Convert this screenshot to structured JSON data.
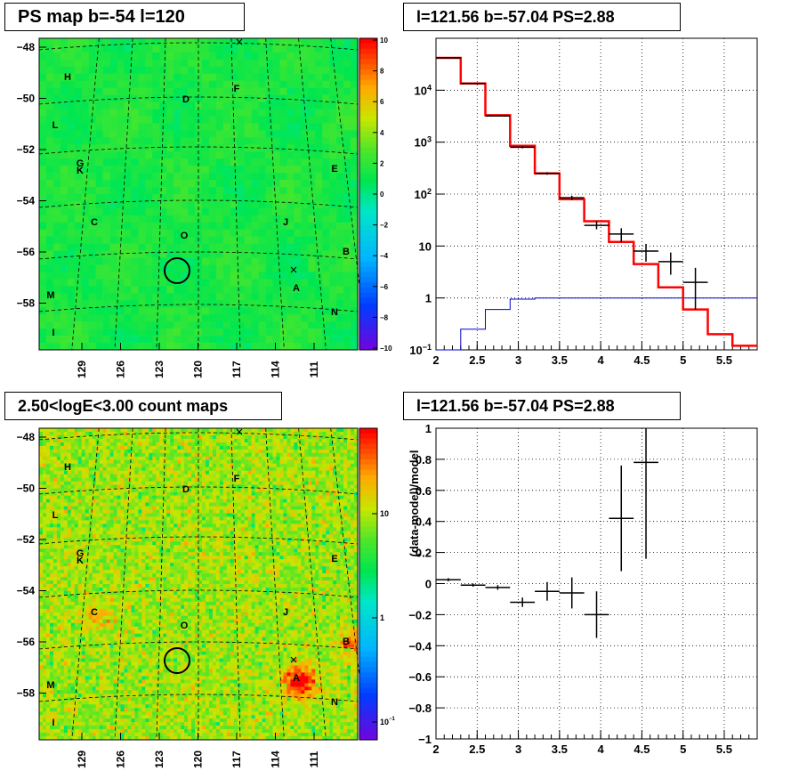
{
  "panels": {
    "ps_map_title": "PS map b=-54 l=120",
    "spectrum_title": "l=121.56 b=-57.04 PS=2.88",
    "count_map_title": "2.50<logE<3.00 count maps",
    "residual_title": "l=121.56 b=-57.04 PS=2.88"
  },
  "colors": {
    "data": "#000000",
    "model": "#ff0000",
    "background_model": "#0000cc",
    "map_base": "#33d633"
  },
  "maps": {
    "y_ticks": [
      "-48",
      "-50",
      "-52",
      "-54",
      "-56",
      "-58"
    ],
    "x_ticks": [
      "129",
      "126",
      "123",
      "120",
      "117",
      "114",
      "111"
    ],
    "source_labels": [
      "H",
      "D",
      "F",
      "L",
      "G",
      "K",
      "E",
      "C",
      "J",
      "O",
      "B",
      "A",
      "M",
      "N",
      "I"
    ],
    "ps_map_colorbar": [
      "10",
      "8",
      "6",
      "4",
      "2",
      "0",
      "-2",
      "-4",
      "-6",
      "-8",
      "-10"
    ],
    "count_map_colorbar": [
      "10",
      "1",
      "10^-1"
    ]
  },
  "chart_data": [
    {
      "type": "heatmap",
      "title": "PS map b=-54 l=120",
      "x_ticks": [
        "129",
        "126",
        "123",
        "120",
        "117",
        "114",
        "111"
      ],
      "y_ticks": [
        "-48",
        "-50",
        "-52",
        "-54",
        "-56",
        "-58"
      ],
      "colorbar_range": [
        -10,
        10
      ],
      "colorbar_ticks": [
        "10",
        "8",
        "6",
        "4",
        "2",
        "0",
        "-2",
        "-4",
        "-6",
        "-8",
        "-10"
      ],
      "labels": [
        "H",
        "D",
        "F",
        "L",
        "G",
        "K",
        "E",
        "C",
        "J",
        "O",
        "B",
        "A",
        "M",
        "N",
        "I"
      ],
      "marked_position": {
        "l": 121.56,
        "b": -57.04
      }
    },
    {
      "type": "line",
      "title": "l=121.56 b=-57.04 PS=2.88",
      "xlim": [
        2,
        5.9
      ],
      "ylim": [
        0.1,
        100000
      ],
      "yscale": "log",
      "x_ticks": [
        "2",
        "2.5",
        "3",
        "3.5",
        "4",
        "4.5",
        "5",
        "5.5"
      ],
      "y_ticks": [
        "10^-1",
        "1",
        "10",
        "10^2",
        "10^3",
        "10^4"
      ],
      "grid": true,
      "bin_edges": [
        2.0,
        2.3,
        2.6,
        2.9,
        3.2,
        3.5,
        3.8,
        4.1,
        4.4,
        4.7,
        5.0,
        5.3,
        5.6,
        5.9
      ],
      "series": [
        {
          "values": [
            42000,
            13500,
            3300,
            850,
            250,
            80,
            30,
            12,
            4.5,
            1.6,
            0.6,
            0.2,
            0.12
          ]
        },
        {
          "values": [
            0.06,
            0.25,
            0.6,
            0.95,
            1.0,
            1.0,
            1.0,
            1.0,
            1.0,
            1.0,
            1.0,
            1.0,
            1.0
          ]
        },
        {
          "x": [
            2.15,
            2.45,
            2.75,
            3.05,
            3.35,
            3.65,
            3.95,
            4.25,
            4.55,
            4.85,
            5.15
          ],
          "values": [
            42000,
            13500,
            3200,
            800,
            250,
            85,
            25,
            17,
            8,
            5,
            2
          ],
          "y_low": [
            41500,
            13300,
            3100,
            760,
            235,
            77,
            21,
            12,
            5,
            2.8,
            0.6
          ],
          "y_high": [
            42500,
            13700,
            3300,
            840,
            265,
            93,
            30,
            22,
            11,
            7.5,
            3.8
          ]
        }
      ]
    },
    {
      "type": "heatmap",
      "title": "2.50<logE<3.00 count maps",
      "x_ticks": [
        "129",
        "126",
        "123",
        "120",
        "117",
        "114",
        "111"
      ],
      "y_ticks": [
        "-48",
        "-50",
        "-52",
        "-54",
        "-56",
        "-58"
      ],
      "colorbar_ticks": [
        "10",
        "1",
        "10^-1"
      ],
      "colorbar_scale": "log",
      "labels": [
        "H",
        "D",
        "F",
        "L",
        "G",
        "K",
        "E",
        "C",
        "J",
        "O",
        "B",
        "A",
        "M",
        "N",
        "I"
      ],
      "marked_position": {
        "l": 121.56,
        "b": -57.04
      }
    },
    {
      "type": "scatter",
      "title": "l=121.56 b=-57.04 PS=2.88",
      "xlim": [
        2,
        5.9
      ],
      "ylim": [
        -1,
        1
      ],
      "ylabel": "(data-model)/model",
      "x_ticks": [
        "2",
        "2.5",
        "3",
        "3.5",
        "4",
        "4.5",
        "5",
        "5.5"
      ],
      "y_ticks": [
        "-1",
        "-0.8",
        "-0.6",
        "-0.4",
        "-0.2",
        "0",
        "0.2",
        "0.4",
        "0.6",
        "0.8",
        "1"
      ],
      "grid": true,
      "points": [
        {
          "x": 2.15,
          "y": 0.025,
          "yerr": 0.01
        },
        {
          "x": 2.45,
          "y": -0.01,
          "yerr": 0.01
        },
        {
          "x": 2.75,
          "y": -0.025,
          "yerr": 0.015
        },
        {
          "x": 3.05,
          "y": -0.12,
          "yerr": 0.03
        },
        {
          "x": 3.35,
          "y": -0.05,
          "yerr": 0.06
        },
        {
          "x": 3.65,
          "y": -0.06,
          "yerr": 0.1
        },
        {
          "x": 3.95,
          "y": -0.2,
          "yerr": 0.15
        },
        {
          "x": 4.25,
          "y": 0.42,
          "yerr": 0.34
        },
        {
          "x": 4.55,
          "y": 0.78,
          "yerr": 0.62
        }
      ]
    }
  ]
}
